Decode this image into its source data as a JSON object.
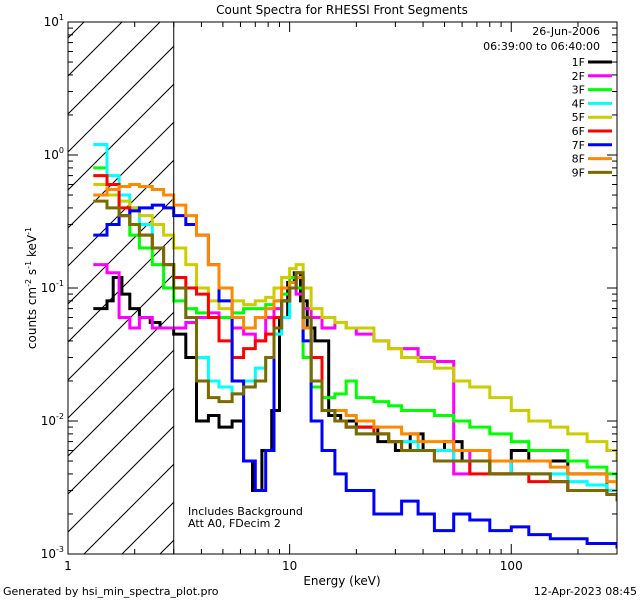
{
  "chart_data": {
    "type": "line",
    "title": "Count Spectra for RHESSI Front Segments",
    "xlabel": "Energy (keV)",
    "ylabel_parts": [
      "counts cm",
      "-2",
      " s",
      "-1",
      " keV",
      "-1"
    ],
    "xscale": "log",
    "yscale": "log",
    "xlim": [
      1,
      300
    ],
    "ylim": [
      0.001,
      10
    ],
    "x_ticks": [
      {
        "value": 1,
        "label": "1"
      },
      {
        "value": 10,
        "label": "10"
      },
      {
        "value": 100,
        "label": "100"
      }
    ],
    "y_ticks": [
      {
        "value": 0.001,
        "base": "10",
        "exp": "-3"
      },
      {
        "value": 0.01,
        "base": "10",
        "exp": "-2"
      },
      {
        "value": 0.1,
        "base": "10",
        "exp": "-1"
      },
      {
        "value": 1,
        "base": "10",
        "exp": "0"
      },
      {
        "value": 10,
        "base": "10",
        "exp": "1"
      }
    ],
    "excluded_region_max_energy": 3,
    "legend": {
      "date": "26-Jun-2006",
      "time_range": "06:39:00 to 06:40:00",
      "placement": "top-right"
    },
    "annotation_lines": [
      "Includes Background",
      "Att A0, FDecim 2"
    ],
    "series": [
      {
        "name": "1F",
        "color": "#000000",
        "x": [
          1.3,
          1.5,
          1.6,
          1.75,
          1.9,
          2.1,
          2.35,
          2.6,
          3.0,
          3.4,
          3.8,
          4.3,
          4.8,
          5.5,
          6.2,
          6.8,
          7.5,
          8.3,
          9.0,
          9.8,
          10.5,
          11.2,
          12.0,
          13,
          15,
          17,
          20,
          25,
          30,
          35,
          40,
          50,
          60,
          70,
          80,
          100,
          120,
          150,
          180,
          220,
          270,
          300
        ],
        "y": [
          0.07,
          0.08,
          0.12,
          0.09,
          0.07,
          0.06,
          0.055,
          0.05,
          0.045,
          0.03,
          0.01,
          0.011,
          0.009,
          0.01,
          0.005,
          0.003,
          0.006,
          0.012,
          0.06,
          0.11,
          0.13,
          0.08,
          0.05,
          0.04,
          0.011,
          0.01,
          0.009,
          0.007,
          0.006,
          0.008,
          0.006,
          0.007,
          0.005,
          0.005,
          0.004,
          0.006,
          0.005,
          0.005,
          0.004,
          0.004,
          0.003,
          0.003
        ]
      },
      {
        "name": "2F",
        "color": "#ff00ff",
        "x": [
          1.3,
          1.5,
          1.7,
          1.9,
          2.1,
          2.4,
          2.7,
          3.0,
          3.4,
          3.8,
          4.3,
          4.8,
          5.5,
          6.2,
          7.0,
          7.8,
          8.5,
          9.2,
          10.0,
          10.7,
          11.5,
          12.5,
          14,
          16,
          18,
          20,
          24,
          28,
          32,
          38,
          45,
          55,
          65,
          80,
          100,
          120,
          150,
          180,
          220,
          270,
          300
        ],
        "y": [
          0.15,
          0.13,
          0.06,
          0.05,
          0.06,
          0.05,
          0.05,
          0.05,
          0.055,
          0.06,
          0.065,
          0.06,
          0.05,
          0.045,
          0.04,
          0.06,
          0.07,
          0.08,
          0.1,
          0.09,
          0.07,
          0.06,
          0.05,
          0.055,
          0.05,
          0.045,
          0.04,
          0.035,
          0.035,
          0.03,
          0.028,
          0.004,
          0.006,
          0.005,
          0.004,
          0.004,
          0.0035,
          0.003,
          0.003,
          0.0028,
          0.0025
        ]
      },
      {
        "name": "3F",
        "color": "#00ff00",
        "x": [
          1.3,
          1.5,
          1.7,
          1.9,
          2.1,
          2.4,
          2.7,
          3.0,
          3.4,
          3.8,
          4.3,
          4.8,
          5.5,
          6.2,
          7.0,
          7.8,
          8.5,
          9.2,
          10.0,
          10.7,
          11.5,
          12.5,
          14,
          16,
          18,
          20,
          24,
          28,
          32,
          38,
          45,
          55,
          65,
          80,
          100,
          120,
          150,
          180,
          220,
          270,
          300
        ],
        "y": [
          0.8,
          0.5,
          0.35,
          0.25,
          0.2,
          0.15,
          0.1,
          0.08,
          0.07,
          0.065,
          0.06,
          0.06,
          0.065,
          0.07,
          0.07,
          0.075,
          0.08,
          0.09,
          0.12,
          0.1,
          0.03,
          0.018,
          0.015,
          0.016,
          0.02,
          0.015,
          0.014,
          0.013,
          0.012,
          0.012,
          0.011,
          0.01,
          0.009,
          0.008,
          0.007,
          0.006,
          0.006,
          0.005,
          0.0045,
          0.004,
          0.0035
        ]
      },
      {
        "name": "4F",
        "color": "#00ffff",
        "x": [
          1.3,
          1.5,
          1.7,
          1.9,
          2.1,
          2.4,
          2.7,
          3.0,
          3.4,
          3.8,
          4.3,
          4.8,
          5.5,
          6.2,
          7.0,
          7.8,
          8.5,
          9.2,
          10.0,
          10.7,
          11.5,
          12.5,
          14,
          16,
          18,
          20,
          24,
          28,
          32,
          38,
          45,
          55,
          65,
          80,
          100,
          120,
          150,
          180,
          220,
          270,
          300
        ],
        "y": [
          1.2,
          0.7,
          0.5,
          0.4,
          0.3,
          0.2,
          0.15,
          0.1,
          0.06,
          0.03,
          0.02,
          0.018,
          0.016,
          0.02,
          0.025,
          0.03,
          0.045,
          0.06,
          0.11,
          0.13,
          0.05,
          0.02,
          0.012,
          0.01,
          0.009,
          0.008,
          0.008,
          0.007,
          0.007,
          0.006,
          0.006,
          0.005,
          0.005,
          0.005,
          0.004,
          0.004,
          0.004,
          0.0035,
          0.0033,
          0.003,
          0.0028
        ]
      },
      {
        "name": "5F",
        "color": "#cccc00",
        "x": [
          1.3,
          1.5,
          1.7,
          1.9,
          2.1,
          2.4,
          2.7,
          3.0,
          3.4,
          3.8,
          4.3,
          4.8,
          5.5,
          6.2,
          7.0,
          7.8,
          8.5,
          9.2,
          10.0,
          10.7,
          11.5,
          12.5,
          14,
          16,
          18,
          20,
          24,
          28,
          32,
          38,
          45,
          55,
          65,
          80,
          100,
          120,
          150,
          180,
          220,
          270,
          300
        ],
        "y": [
          0.6,
          0.5,
          0.45,
          0.4,
          0.35,
          0.3,
          0.25,
          0.2,
          0.15,
          0.1,
          0.08,
          0.07,
          0.08,
          0.075,
          0.08,
          0.085,
          0.1,
          0.12,
          0.14,
          0.15,
          0.1,
          0.07,
          0.06,
          0.055,
          0.05,
          0.05,
          0.04,
          0.035,
          0.03,
          0.028,
          0.025,
          0.02,
          0.018,
          0.015,
          0.012,
          0.01,
          0.009,
          0.008,
          0.007,
          0.006,
          0.005
        ]
      },
      {
        "name": "6F",
        "color": "#ff0000",
        "x": [
          1.3,
          1.5,
          1.7,
          1.9,
          2.1,
          2.4,
          2.7,
          3.0,
          3.4,
          3.8,
          4.3,
          4.8,
          5.5,
          6.2,
          7.0,
          7.8,
          8.5,
          9.2,
          10.0,
          10.7,
          11.5,
          12.5,
          14,
          16,
          18,
          20,
          24,
          28,
          32,
          38,
          45,
          55,
          65,
          80,
          100,
          120,
          150,
          180,
          220,
          270,
          300
        ],
        "y": [
          0.7,
          0.6,
          0.4,
          0.3,
          0.25,
          0.2,
          0.15,
          0.12,
          0.1,
          0.09,
          0.06,
          0.04,
          0.03,
          0.035,
          0.04,
          0.045,
          0.06,
          0.08,
          0.1,
          0.12,
          0.06,
          0.03,
          0.012,
          0.01,
          0.009,
          0.009,
          0.008,
          0.007,
          0.006,
          0.006,
          0.005,
          0.005,
          0.004,
          0.004,
          0.004,
          0.0035,
          0.0035,
          0.003,
          0.003,
          0.0028,
          0.0025
        ]
      },
      {
        "name": "7F",
        "color": "#0000ff",
        "x": [
          1.3,
          1.5,
          1.7,
          1.9,
          2.1,
          2.4,
          2.7,
          3.0,
          3.4,
          3.8,
          4.3,
          4.8,
          5.5,
          6.2,
          7.0,
          7.8,
          8.5,
          9.2,
          10.0,
          10.7,
          11.5,
          12.5,
          14,
          16,
          18,
          20,
          24,
          28,
          32,
          38,
          45,
          55,
          65,
          80,
          100,
          120,
          150,
          180,
          220,
          270,
          300
        ],
        "y": [
          0.25,
          0.3,
          0.35,
          0.38,
          0.4,
          0.42,
          0.4,
          0.35,
          0.3,
          0.25,
          0.15,
          0.08,
          0.02,
          0.005,
          0.003,
          0.006,
          0.05,
          0.08,
          0.1,
          0.12,
          0.04,
          0.01,
          0.006,
          0.004,
          0.003,
          0.003,
          0.002,
          0.002,
          0.0025,
          0.002,
          0.0015,
          0.002,
          0.0018,
          0.0015,
          0.0016,
          0.0014,
          0.0013,
          0.0013,
          0.0012,
          0.0012,
          0.0011
        ]
      },
      {
        "name": "8F",
        "color": "#ff8800",
        "x": [
          1.3,
          1.5,
          1.7,
          1.9,
          2.1,
          2.4,
          2.7,
          3.0,
          3.4,
          3.8,
          4.3,
          4.8,
          5.5,
          6.2,
          7.0,
          7.8,
          8.5,
          9.2,
          10.0,
          10.7,
          11.5,
          12.5,
          14,
          16,
          18,
          20,
          24,
          28,
          32,
          38,
          45,
          55,
          65,
          80,
          100,
          120,
          150,
          180,
          220,
          270,
          300
        ],
        "y": [
          0.5,
          0.55,
          0.58,
          0.6,
          0.58,
          0.55,
          0.5,
          0.42,
          0.35,
          0.25,
          0.15,
          0.1,
          0.06,
          0.05,
          0.06,
          0.07,
          0.08,
          0.1,
          0.11,
          0.12,
          0.05,
          0.02,
          0.012,
          0.012,
          0.011,
          0.01,
          0.009,
          0.009,
          0.008,
          0.007,
          0.007,
          0.006,
          0.006,
          0.005,
          0.005,
          0.005,
          0.0045,
          0.004,
          0.004,
          0.0035,
          0.003
        ]
      },
      {
        "name": "9F",
        "color": "#7a6a00",
        "x": [
          1.3,
          1.5,
          1.7,
          1.9,
          2.1,
          2.4,
          2.7,
          3.0,
          3.4,
          3.8,
          4.3,
          4.8,
          5.5,
          6.2,
          7.0,
          7.8,
          8.5,
          9.2,
          10.0,
          10.7,
          11.5,
          12.5,
          14,
          16,
          18,
          20,
          24,
          28,
          32,
          38,
          45,
          55,
          65,
          80,
          100,
          120,
          150,
          180,
          220,
          270,
          300
        ],
        "y": [
          0.45,
          0.4,
          0.35,
          0.3,
          0.25,
          0.2,
          0.15,
          0.1,
          0.06,
          0.02,
          0.015,
          0.014,
          0.016,
          0.018,
          0.02,
          0.03,
          0.05,
          0.08,
          0.1,
          0.13,
          0.06,
          0.02,
          0.012,
          0.01,
          0.009,
          0.008,
          0.008,
          0.007,
          0.006,
          0.006,
          0.005,
          0.005,
          0.005,
          0.004,
          0.004,
          0.004,
          0.0035,
          0.003,
          0.003,
          0.0028,
          0.0025
        ]
      }
    ]
  },
  "footer": {
    "generator": "Generated by hsi_min_spectra_plot.pro",
    "timestamp": "12-Apr-2023 08:45"
  }
}
